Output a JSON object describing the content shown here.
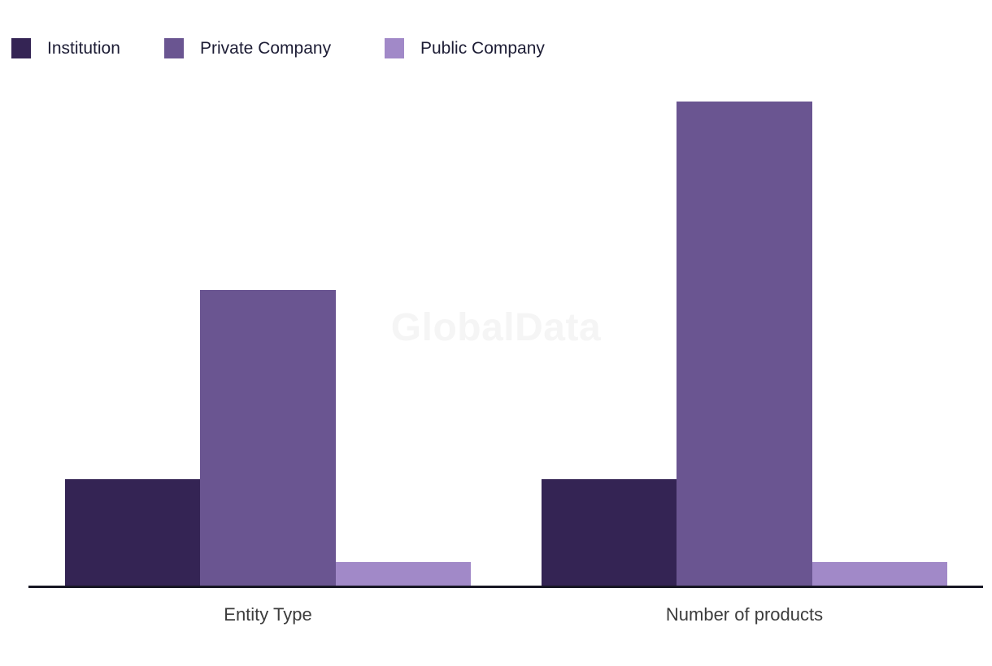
{
  "watermark": "GlobalData",
  "chart_data": {
    "type": "bar",
    "title": "",
    "xlabel": "",
    "ylabel": "",
    "categories": [
      "Entity Type",
      "Number of products"
    ],
    "series": [
      {
        "name": "Institution",
        "color": "#342454",
        "values": [
          4.4,
          4.4
        ]
      },
      {
        "name": "Private Company",
        "color": "#6A5591",
        "values": [
          12.2,
          20
        ]
      },
      {
        "name": "Public Company",
        "color": "#A189C8",
        "values": [
          1,
          1
        ]
      }
    ],
    "ylim": [
      0,
      20
    ],
    "grid": false,
    "y_axis_visible": false,
    "legend_position": "top-left",
    "axis_color": "#171724",
    "watermark": "GlobalData"
  }
}
